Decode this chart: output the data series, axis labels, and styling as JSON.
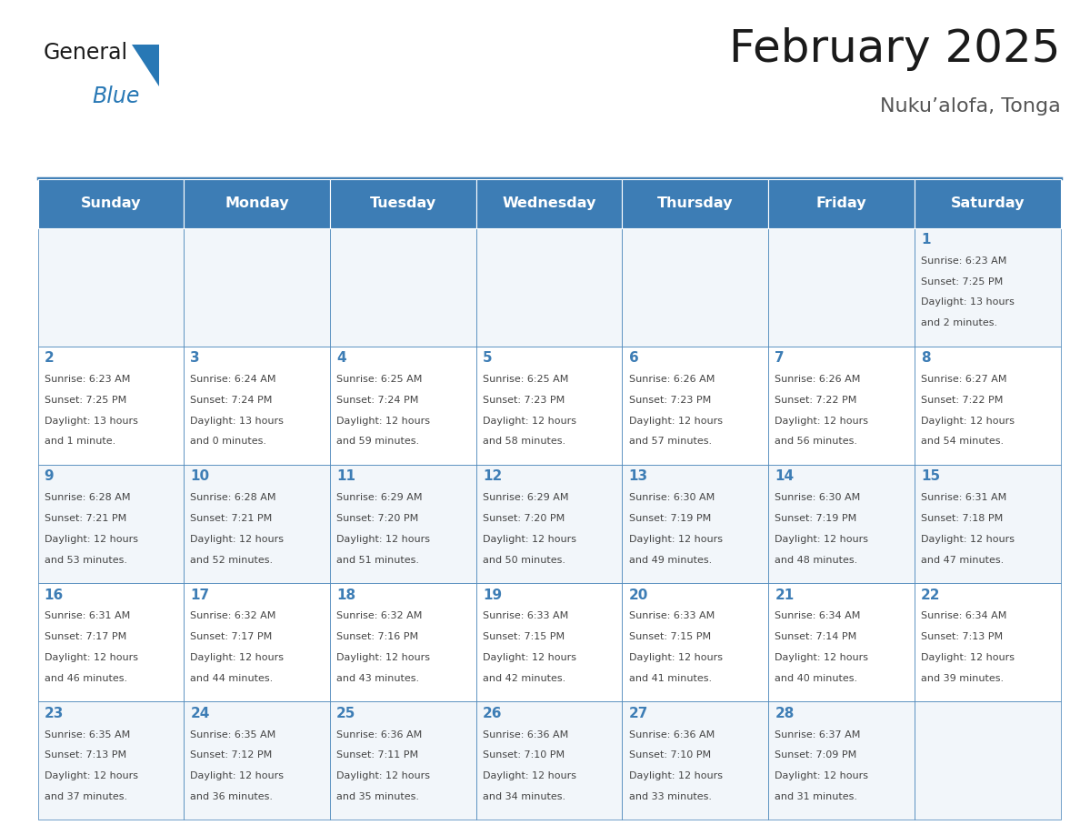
{
  "title": "February 2025",
  "subtitle": "Nuku’alofa, Tonga",
  "days_of_week": [
    "Sunday",
    "Monday",
    "Tuesday",
    "Wednesday",
    "Thursday",
    "Friday",
    "Saturday"
  ],
  "header_bg_color": "#3d7db5",
  "header_text_color": "#ffffff",
  "cell_bg_color": "#f2f6fa",
  "cell_bg_white": "#ffffff",
  "day_num_color": "#3d7db5",
  "info_text_color": "#444444",
  "border_color": "#3d7db5",
  "title_color": "#1a1a1a",
  "subtitle_color": "#555555",
  "logo_general_color": "#1a1a1a",
  "logo_blue_color": "#2878b5",
  "calendar_data": [
    [
      {
        "day": null,
        "sunrise": null,
        "sunset": null,
        "daylight": null
      },
      {
        "day": null,
        "sunrise": null,
        "sunset": null,
        "daylight": null
      },
      {
        "day": null,
        "sunrise": null,
        "sunset": null,
        "daylight": null
      },
      {
        "day": null,
        "sunrise": null,
        "sunset": null,
        "daylight": null
      },
      {
        "day": null,
        "sunrise": null,
        "sunset": null,
        "daylight": null
      },
      {
        "day": null,
        "sunrise": null,
        "sunset": null,
        "daylight": null
      },
      {
        "day": 1,
        "sunrise": "6:23 AM",
        "sunset": "7:25 PM",
        "daylight": "13 hours\nand 2 minutes."
      }
    ],
    [
      {
        "day": 2,
        "sunrise": "6:23 AM",
        "sunset": "7:25 PM",
        "daylight": "13 hours\nand 1 minute."
      },
      {
        "day": 3,
        "sunrise": "6:24 AM",
        "sunset": "7:24 PM",
        "daylight": "13 hours\nand 0 minutes."
      },
      {
        "day": 4,
        "sunrise": "6:25 AM",
        "sunset": "7:24 PM",
        "daylight": "12 hours\nand 59 minutes."
      },
      {
        "day": 5,
        "sunrise": "6:25 AM",
        "sunset": "7:23 PM",
        "daylight": "12 hours\nand 58 minutes."
      },
      {
        "day": 6,
        "sunrise": "6:26 AM",
        "sunset": "7:23 PM",
        "daylight": "12 hours\nand 57 minutes."
      },
      {
        "day": 7,
        "sunrise": "6:26 AM",
        "sunset": "7:22 PM",
        "daylight": "12 hours\nand 56 minutes."
      },
      {
        "day": 8,
        "sunrise": "6:27 AM",
        "sunset": "7:22 PM",
        "daylight": "12 hours\nand 54 minutes."
      }
    ],
    [
      {
        "day": 9,
        "sunrise": "6:28 AM",
        "sunset": "7:21 PM",
        "daylight": "12 hours\nand 53 minutes."
      },
      {
        "day": 10,
        "sunrise": "6:28 AM",
        "sunset": "7:21 PM",
        "daylight": "12 hours\nand 52 minutes."
      },
      {
        "day": 11,
        "sunrise": "6:29 AM",
        "sunset": "7:20 PM",
        "daylight": "12 hours\nand 51 minutes."
      },
      {
        "day": 12,
        "sunrise": "6:29 AM",
        "sunset": "7:20 PM",
        "daylight": "12 hours\nand 50 minutes."
      },
      {
        "day": 13,
        "sunrise": "6:30 AM",
        "sunset": "7:19 PM",
        "daylight": "12 hours\nand 49 minutes."
      },
      {
        "day": 14,
        "sunrise": "6:30 AM",
        "sunset": "7:19 PM",
        "daylight": "12 hours\nand 48 minutes."
      },
      {
        "day": 15,
        "sunrise": "6:31 AM",
        "sunset": "7:18 PM",
        "daylight": "12 hours\nand 47 minutes."
      }
    ],
    [
      {
        "day": 16,
        "sunrise": "6:31 AM",
        "sunset": "7:17 PM",
        "daylight": "12 hours\nand 46 minutes."
      },
      {
        "day": 17,
        "sunrise": "6:32 AM",
        "sunset": "7:17 PM",
        "daylight": "12 hours\nand 44 minutes."
      },
      {
        "day": 18,
        "sunrise": "6:32 AM",
        "sunset": "7:16 PM",
        "daylight": "12 hours\nand 43 minutes."
      },
      {
        "day": 19,
        "sunrise": "6:33 AM",
        "sunset": "7:15 PM",
        "daylight": "12 hours\nand 42 minutes."
      },
      {
        "day": 20,
        "sunrise": "6:33 AM",
        "sunset": "7:15 PM",
        "daylight": "12 hours\nand 41 minutes."
      },
      {
        "day": 21,
        "sunrise": "6:34 AM",
        "sunset": "7:14 PM",
        "daylight": "12 hours\nand 40 minutes."
      },
      {
        "day": 22,
        "sunrise": "6:34 AM",
        "sunset": "7:13 PM",
        "daylight": "12 hours\nand 39 minutes."
      }
    ],
    [
      {
        "day": 23,
        "sunrise": "6:35 AM",
        "sunset": "7:13 PM",
        "daylight": "12 hours\nand 37 minutes."
      },
      {
        "day": 24,
        "sunrise": "6:35 AM",
        "sunset": "7:12 PM",
        "daylight": "12 hours\nand 36 minutes."
      },
      {
        "day": 25,
        "sunrise": "6:36 AM",
        "sunset": "7:11 PM",
        "daylight": "12 hours\nand 35 minutes."
      },
      {
        "day": 26,
        "sunrise": "6:36 AM",
        "sunset": "7:10 PM",
        "daylight": "12 hours\nand 34 minutes."
      },
      {
        "day": 27,
        "sunrise": "6:36 AM",
        "sunset": "7:10 PM",
        "daylight": "12 hours\nand 33 minutes."
      },
      {
        "day": 28,
        "sunrise": "6:37 AM",
        "sunset": "7:09 PM",
        "daylight": "12 hours\nand 31 minutes."
      },
      {
        "day": null,
        "sunrise": null,
        "sunset": null,
        "daylight": null
      }
    ]
  ],
  "figsize": [
    11.88,
    9.18
  ],
  "dpi": 100
}
